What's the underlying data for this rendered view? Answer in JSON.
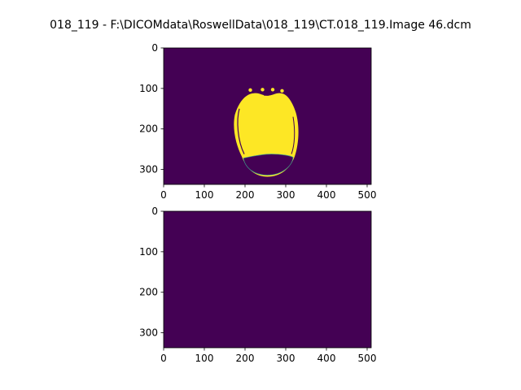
{
  "figure": {
    "title": "018_119 - F:\\DICOMdata\\RoswellData\\018_119\\CT.018_119.Image 46.dcm"
  },
  "colors": {
    "background_class": "#440154",
    "foreground_class": "#fde725",
    "edge_class": "#3b9b8a"
  },
  "chart_data": [
    {
      "type": "heatmap",
      "panel": "top",
      "image_shape": [
        337,
        510
      ],
      "xlim": [
        0,
        510
      ],
      "ylim": [
        337,
        0
      ],
      "y_inverted": true,
      "xticks": [
        0,
        100,
        200,
        300,
        400,
        500
      ],
      "yticks": [
        0,
        100,
        200,
        300
      ],
      "xtick_labels": [
        "0",
        "100",
        "200",
        "300",
        "400",
        "500"
      ],
      "ytick_labels": [
        "0",
        "100",
        "200",
        "300"
      ],
      "values_description": "binary mask: 0 everywhere except a head-shaped region = 1",
      "mask_extent": {
        "x": [
          170,
          330
        ],
        "y": [
          97,
          317
        ]
      }
    },
    {
      "type": "heatmap",
      "panel": "bottom",
      "image_shape": [
        337,
        510
      ],
      "xlim": [
        0,
        510
      ],
      "ylim": [
        337,
        0
      ],
      "y_inverted": true,
      "xticks": [
        0,
        100,
        200,
        300,
        400,
        500
      ],
      "yticks": [
        0,
        100,
        200,
        300
      ],
      "xtick_labels": [
        "0",
        "100",
        "200",
        "300",
        "400",
        "500"
      ],
      "ytick_labels": [
        "0",
        "100",
        "200",
        "300"
      ],
      "values_description": "all zeros"
    }
  ]
}
